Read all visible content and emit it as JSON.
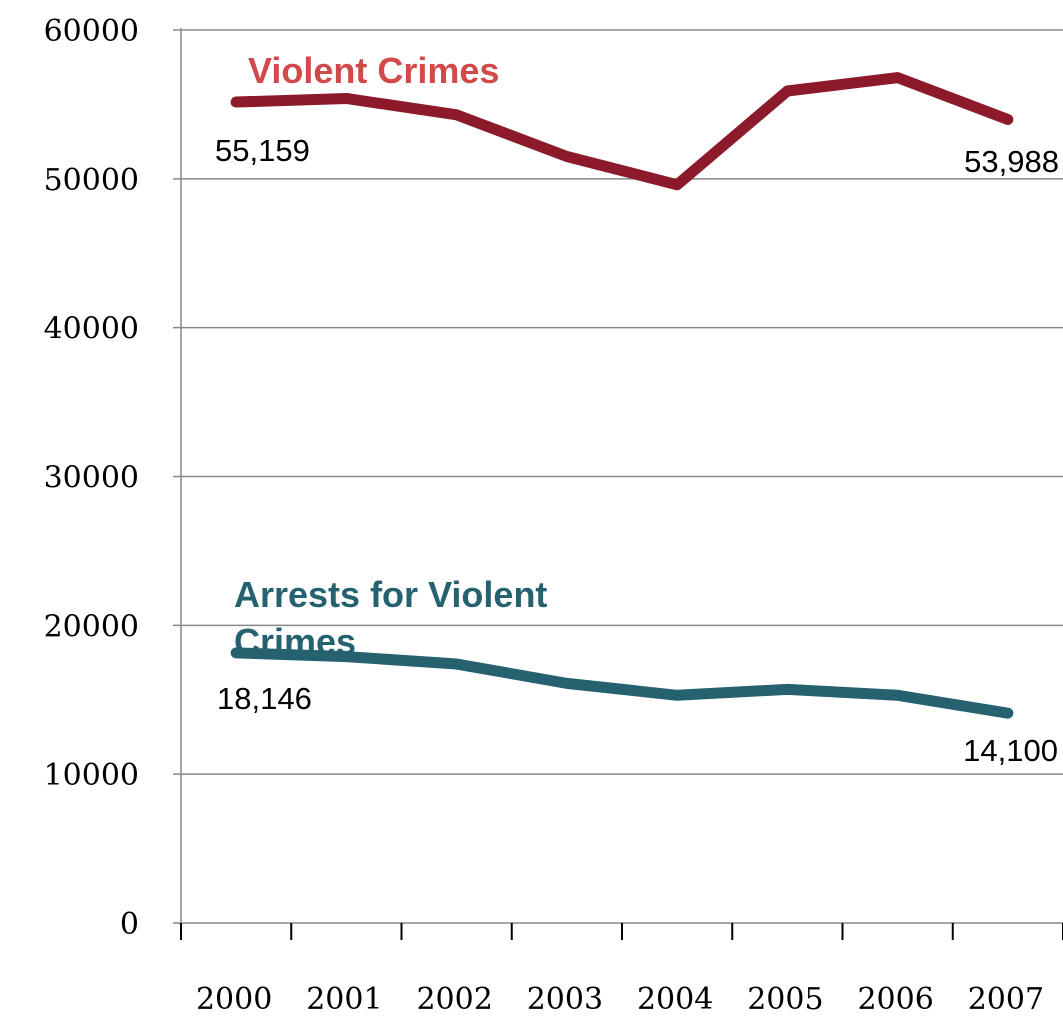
{
  "chart_data": {
    "type": "line",
    "categories": [
      "2000",
      "2001",
      "2002",
      "2003",
      "2004",
      "2005",
      "2006",
      "2007"
    ],
    "ylim": [
      0,
      60000
    ],
    "yticks": [
      "0",
      "10000",
      "20000",
      "30000",
      "40000",
      "50000",
      "60000"
    ],
    "grid": true,
    "series": [
      {
        "name": "Violent Crimes",
        "color": "#8c1a2b",
        "label_color": "#d04a4a",
        "values": [
          55159,
          55400,
          54300,
          51500,
          49600,
          55900,
          56800,
          53988
        ],
        "data_labels": {
          "first": "55,159",
          "last": "53,988"
        }
      },
      {
        "name_lines": [
          "Arrests for Violent",
          "Crimes"
        ],
        "color": "#266170",
        "label_color": "#266170",
        "values": [
          18146,
          17900,
          17400,
          16100,
          15300,
          15700,
          15300,
          14100
        ],
        "data_labels": {
          "first": "18,146",
          "last": "14,100"
        }
      }
    ]
  }
}
